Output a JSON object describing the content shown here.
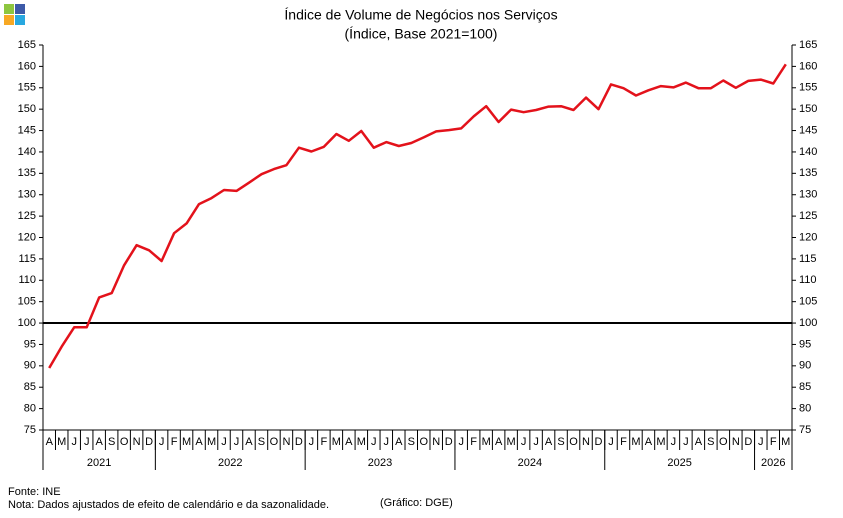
{
  "chart_data": {
    "type": "line",
    "title": "Índice de Volume de Negócios nos Serviços",
    "subtitle": "(Índice, Base 2021=100)",
    "categories": [
      "A",
      "M",
      "J",
      "J",
      "A",
      "S",
      "O",
      "N",
      "D",
      "J",
      "F",
      "M",
      "A",
      "M",
      "J",
      "J",
      "A",
      "S",
      "O",
      "N",
      "D",
      "J",
      "F",
      "M",
      "A",
      "M",
      "J",
      "J",
      "A",
      "S",
      "O",
      "N",
      "D",
      "J",
      "F",
      "M",
      "A",
      "M",
      "J",
      "J",
      "A",
      "S",
      "O",
      "N",
      "D",
      "J",
      "F",
      "M",
      "A",
      "M",
      "J",
      "J",
      "A",
      "S",
      "O",
      "N",
      "D",
      "J",
      "F",
      "M"
    ],
    "groups": [
      {
        "label": "2021",
        "size": 9
      },
      {
        "label": "2022",
        "size": 12
      },
      {
        "label": "2023",
        "size": 12
      },
      {
        "label": "2024",
        "size": 12
      },
      {
        "label": "2025",
        "size": 12
      },
      {
        "label": "2026",
        "size": 3
      }
    ],
    "values": [
      89.5,
      94.5,
      99,
      99,
      106,
      107,
      113.5,
      118.2,
      117,
      114.5,
      121,
      123.3,
      127.8,
      129.2,
      131.1,
      130.9,
      132.8,
      134.8,
      136,
      136.9,
      141,
      140.1,
      141.2,
      144.2,
      142.6,
      144.9,
      141,
      142.3,
      141.4,
      142.1,
      143.4,
      144.8,
      145.1,
      145.5,
      148.3,
      150.7,
      147,
      149.9,
      149.3,
      149.8,
      150.6,
      150.7,
      149.8,
      152.7,
      150,
      155.8,
      154.9,
      153.2,
      154.4,
      155.4,
      155.1,
      156.2,
      154.9,
      154.9,
      156.7,
      155,
      156.6,
      156.9,
      156,
      160.5
    ],
    "color": "#e3121b",
    "reference_line": 100,
    "ylim": [
      75,
      165
    ],
    "yticks": [
      75,
      80,
      85,
      90,
      95,
      100,
      105,
      110,
      115,
      120,
      125,
      130,
      135,
      140,
      145,
      150,
      155,
      160,
      165
    ],
    "y2lim": [
      75,
      165
    ],
    "y2ticks": [
      75,
      80,
      85,
      90,
      95,
      100,
      105,
      110,
      115,
      120,
      125,
      130,
      135,
      140,
      145,
      150,
      155,
      160,
      165
    ],
    "source": "Fonte: INE",
    "note": "Nota: Dados ajustados de efeito de calendário e da sazonalidade.",
    "credit": "(Gráfico: DGE)"
  }
}
